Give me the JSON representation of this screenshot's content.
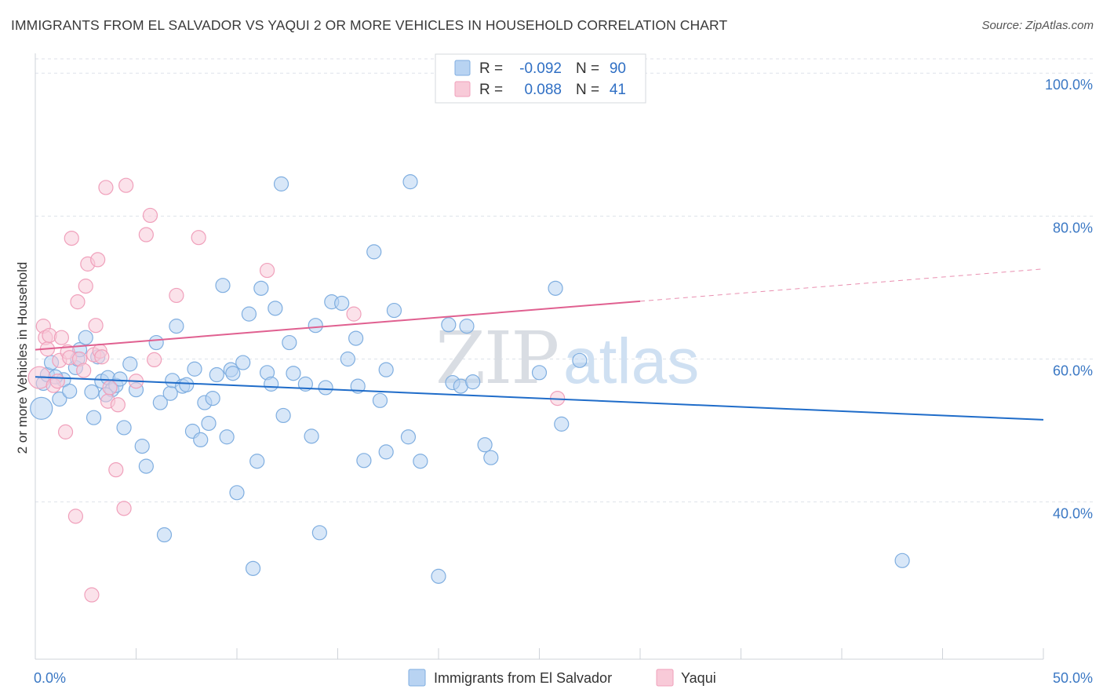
{
  "header": {
    "title": "IMMIGRANTS FROM EL SALVADOR VS YAQUI 2 OR MORE VEHICLES IN HOUSEHOLD CORRELATION CHART",
    "source": "Source: ZipAtlas.com"
  },
  "watermark": {
    "zip": "ZIP",
    "atlas": "atlas"
  },
  "legend_box": {
    "rows": [
      {
        "r_label": "R =",
        "r_value": "-0.092",
        "n_label": "N =",
        "n_value": "90",
        "color": "#7faee0"
      },
      {
        "r_label": "R =",
        "r_value": "0.088",
        "n_label": "N =",
        "n_value": "41",
        "color": "#f0a0bb"
      }
    ]
  },
  "colors": {
    "blue_fill": "#b8d3f2",
    "blue_stroke": "#7faee0",
    "blue_line": "#1f6cc9",
    "pink_fill": "#f8cad8",
    "pink_stroke": "#f0a0bb",
    "pink_line": "#e06090",
    "tick_text": "#3b78c4",
    "grid": "#dde2ea"
  },
  "chart_data": {
    "type": "scatter",
    "title": "IMMIGRANTS FROM EL SALVADOR VS YAQUI 2 OR MORE VEHICLES IN HOUSEHOLD CORRELATION CHART",
    "xlabel": "",
    "ylabel": "2 or more Vehicles in Household",
    "xlim": [
      0,
      50
    ],
    "ylim": [
      18,
      102
    ],
    "x_ticks": [
      "0.0%",
      "50.0%"
    ],
    "y_ticks": [
      {
        "value": 100,
        "label": "100.0%"
      },
      {
        "value": 80,
        "label": "80.0%"
      },
      {
        "value": 60,
        "label": "60.0%"
      },
      {
        "value": 40,
        "label": "40.0%"
      }
    ],
    "grid": true,
    "legend_position": "bottom",
    "series": [
      {
        "name": "Immigrants from El Salvador",
        "r": -0.092,
        "n": 90,
        "trend": {
          "x": [
            0,
            50
          ],
          "y": [
            57.5,
            51.5
          ],
          "dashed_from": null
        },
        "points": [
          [
            0.3,
            53.1
          ],
          [
            0.4,
            56.6
          ],
          [
            0.6,
            57.8
          ],
          [
            0.8,
            59.5
          ],
          [
            1.2,
            54.4
          ],
          [
            1.4,
            57.1
          ],
          [
            1.7,
            55.5
          ],
          [
            2.0,
            58.8
          ],
          [
            2.1,
            60.0
          ],
          [
            2.2,
            61.3
          ],
          [
            2.5,
            63.0
          ],
          [
            2.8,
            55.4
          ],
          [
            2.9,
            51.8
          ],
          [
            3.1,
            60.3
          ],
          [
            3.3,
            56.9
          ],
          [
            3.6,
            57.4
          ],
          [
            3.8,
            55.7
          ],
          [
            4.0,
            56.3
          ],
          [
            4.2,
            57.2
          ],
          [
            4.4,
            50.4
          ],
          [
            4.7,
            59.3
          ],
          [
            5.0,
            55.7
          ],
          [
            5.3,
            47.8
          ],
          [
            5.5,
            45.0
          ],
          [
            6.0,
            62.3
          ],
          [
            6.2,
            53.9
          ],
          [
            6.4,
            35.4
          ],
          [
            6.7,
            55.2
          ],
          [
            6.8,
            57.0
          ],
          [
            7.0,
            64.6
          ],
          [
            7.3,
            56.2
          ],
          [
            7.5,
            56.4
          ],
          [
            7.8,
            49.9
          ],
          [
            7.9,
            58.6
          ],
          [
            8.2,
            48.7
          ],
          [
            8.4,
            53.9
          ],
          [
            8.6,
            51.0
          ],
          [
            8.8,
            54.5
          ],
          [
            9.0,
            57.8
          ],
          [
            9.3,
            70.3
          ],
          [
            9.5,
            49.1
          ],
          [
            9.7,
            58.5
          ],
          [
            10.0,
            41.3
          ],
          [
            10.3,
            59.5
          ],
          [
            10.6,
            66.3
          ],
          [
            10.8,
            30.7
          ],
          [
            11.0,
            45.7
          ],
          [
            11.2,
            69.9
          ],
          [
            11.5,
            58.1
          ],
          [
            11.7,
            56.5
          ],
          [
            11.9,
            67.1
          ],
          [
            12.2,
            84.5
          ],
          [
            12.3,
            52.1
          ],
          [
            12.6,
            62.3
          ],
          [
            12.8,
            58.0
          ],
          [
            13.4,
            56.5
          ],
          [
            13.7,
            49.2
          ],
          [
            13.9,
            64.7
          ],
          [
            14.1,
            35.7
          ],
          [
            14.4,
            56.0
          ],
          [
            14.7,
            68.0
          ],
          [
            15.2,
            67.8
          ],
          [
            15.5,
            60.0
          ],
          [
            15.9,
            62.9
          ],
          [
            16.0,
            56.2
          ],
          [
            16.3,
            45.8
          ],
          [
            16.8,
            75.0
          ],
          [
            17.1,
            54.2
          ],
          [
            17.4,
            58.5
          ],
          [
            17.4,
            47.0
          ],
          [
            17.8,
            66.8
          ],
          [
            18.5,
            49.1
          ],
          [
            18.6,
            84.8
          ],
          [
            19.1,
            45.7
          ],
          [
            20.0,
            29.6
          ],
          [
            20.5,
            64.8
          ],
          [
            20.7,
            56.7
          ],
          [
            21.1,
            56.2
          ],
          [
            21.4,
            64.6
          ],
          [
            21.7,
            56.8
          ],
          [
            22.3,
            48.0
          ],
          [
            22.6,
            46.2
          ],
          [
            25.0,
            58.1
          ],
          [
            25.8,
            69.9
          ],
          [
            26.1,
            50.9
          ],
          [
            27.0,
            59.8
          ],
          [
            43.0,
            31.8
          ],
          [
            1.0,
            57.5
          ],
          [
            3.5,
            55.0
          ],
          [
            9.8,
            58.0
          ]
        ]
      },
      {
        "name": "Yaqui",
        "r": 0.088,
        "n": 41,
        "trend": {
          "x": [
            0,
            50
          ],
          "y": [
            61.3,
            72.6
          ],
          "dashed_from": 30
        },
        "points": [
          [
            0.2,
            57.4
          ],
          [
            0.4,
            64.6
          ],
          [
            0.5,
            63.0
          ],
          [
            0.6,
            61.4
          ],
          [
            0.7,
            63.3
          ],
          [
            0.9,
            56.3
          ],
          [
            1.1,
            56.9
          ],
          [
            1.2,
            59.8
          ],
          [
            1.5,
            49.8
          ],
          [
            1.6,
            61.0
          ],
          [
            1.7,
            60.2
          ],
          [
            1.8,
            76.9
          ],
          [
            2.0,
            38.0
          ],
          [
            2.1,
            68.0
          ],
          [
            2.2,
            60.0
          ],
          [
            2.4,
            58.4
          ],
          [
            2.5,
            70.2
          ],
          [
            2.6,
            73.3
          ],
          [
            2.8,
            27.0
          ],
          [
            2.9,
            60.6
          ],
          [
            3.0,
            64.7
          ],
          [
            3.1,
            73.9
          ],
          [
            3.2,
            61.1
          ],
          [
            3.3,
            60.3
          ],
          [
            3.5,
            84.0
          ],
          [
            3.6,
            54.1
          ],
          [
            4.0,
            44.5
          ],
          [
            4.1,
            53.6
          ],
          [
            4.4,
            39.1
          ],
          [
            4.5,
            84.3
          ],
          [
            5.0,
            56.9
          ],
          [
            5.5,
            77.4
          ],
          [
            5.7,
            80.1
          ],
          [
            5.9,
            59.9
          ],
          [
            7.0,
            68.9
          ],
          [
            8.1,
            77.0
          ],
          [
            11.5,
            72.4
          ],
          [
            15.8,
            66.3
          ],
          [
            25.9,
            54.5
          ],
          [
            3.7,
            56.0
          ],
          [
            1.3,
            63.0
          ]
        ]
      }
    ]
  }
}
